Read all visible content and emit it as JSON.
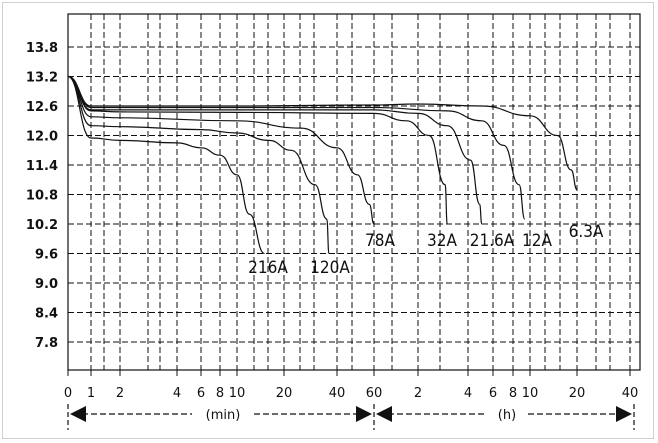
{
  "chart_data": {
    "type": "line",
    "title": "",
    "xlabel": "",
    "ylabel": "",
    "ylim": [
      7.2,
      14.4
    ],
    "y_ticks": [
      "13.8",
      "13.2",
      "12.6",
      "12.0",
      "11.4",
      "10.8",
      "10.2",
      "9.6",
      "9.0",
      "8.4",
      "7.8"
    ],
    "x_ticks": [
      "0",
      "1",
      "2",
      "4",
      "6",
      "8",
      "10",
      "20",
      "40",
      "60",
      "2",
      "4",
      "6",
      "8",
      "10",
      "20",
      "40"
    ],
    "x_axis_scale": "log (time)",
    "time_ranges": [
      {
        "label": "(min)",
        "from_min": 0,
        "to_min": 60
      },
      {
        "label": "(h)",
        "from_h": 1,
        "to_h": 40
      }
    ],
    "grid": true,
    "series": [
      {
        "name": "216A",
        "x_min": [
          0,
          1,
          2,
          4,
          6,
          8,
          10,
          12,
          15
        ],
        "y": [
          13.2,
          11.95,
          11.9,
          11.85,
          11.75,
          11.6,
          11.2,
          10.4,
          9.6
        ]
      },
      {
        "name": "120A",
        "x_min": [
          0,
          1,
          2,
          6,
          10,
          16,
          22,
          30,
          35,
          36
        ],
        "y": [
          13.2,
          12.2,
          12.18,
          12.12,
          12.05,
          11.9,
          11.7,
          11.0,
          10.3,
          9.6
        ]
      },
      {
        "name": "78A",
        "x_min": [
          0,
          1,
          2,
          10,
          25,
          40,
          50,
          57,
          60
        ],
        "y": [
          13.2,
          12.38,
          12.36,
          12.3,
          12.15,
          11.75,
          11.2,
          10.6,
          10.2
        ]
      },
      {
        "name": "32A",
        "x_min": [
          0,
          1,
          2,
          10,
          60,
          100,
          140,
          175,
          180
        ],
        "y": [
          13.2,
          12.5,
          12.48,
          12.47,
          12.45,
          12.3,
          12.0,
          11.0,
          10.2
        ]
      },
      {
        "name": "21.6A",
        "x_min": [
          0,
          1,
          2,
          10,
          60,
          120,
          180,
          250,
          290,
          300
        ],
        "y": [
          13.2,
          12.52,
          12.52,
          12.52,
          12.52,
          12.45,
          12.2,
          11.5,
          10.6,
          10.2
        ]
      },
      {
        "name": "12A",
        "x_min": [
          0,
          1,
          2,
          10,
          60,
          180,
          300,
          420,
          520,
          560
        ],
        "y": [
          13.2,
          12.57,
          12.57,
          12.57,
          12.57,
          12.5,
          12.3,
          11.8,
          11.0,
          10.3
        ]
      },
      {
        "name": "6.3A",
        "x_min": [
          0,
          1,
          2,
          10,
          60,
          120,
          300,
          600,
          900,
          1100,
          1200
        ],
        "y": [
          13.2,
          12.6,
          12.6,
          12.6,
          12.62,
          12.64,
          12.6,
          12.4,
          12.0,
          11.3,
          10.9
        ]
      }
    ]
  }
}
